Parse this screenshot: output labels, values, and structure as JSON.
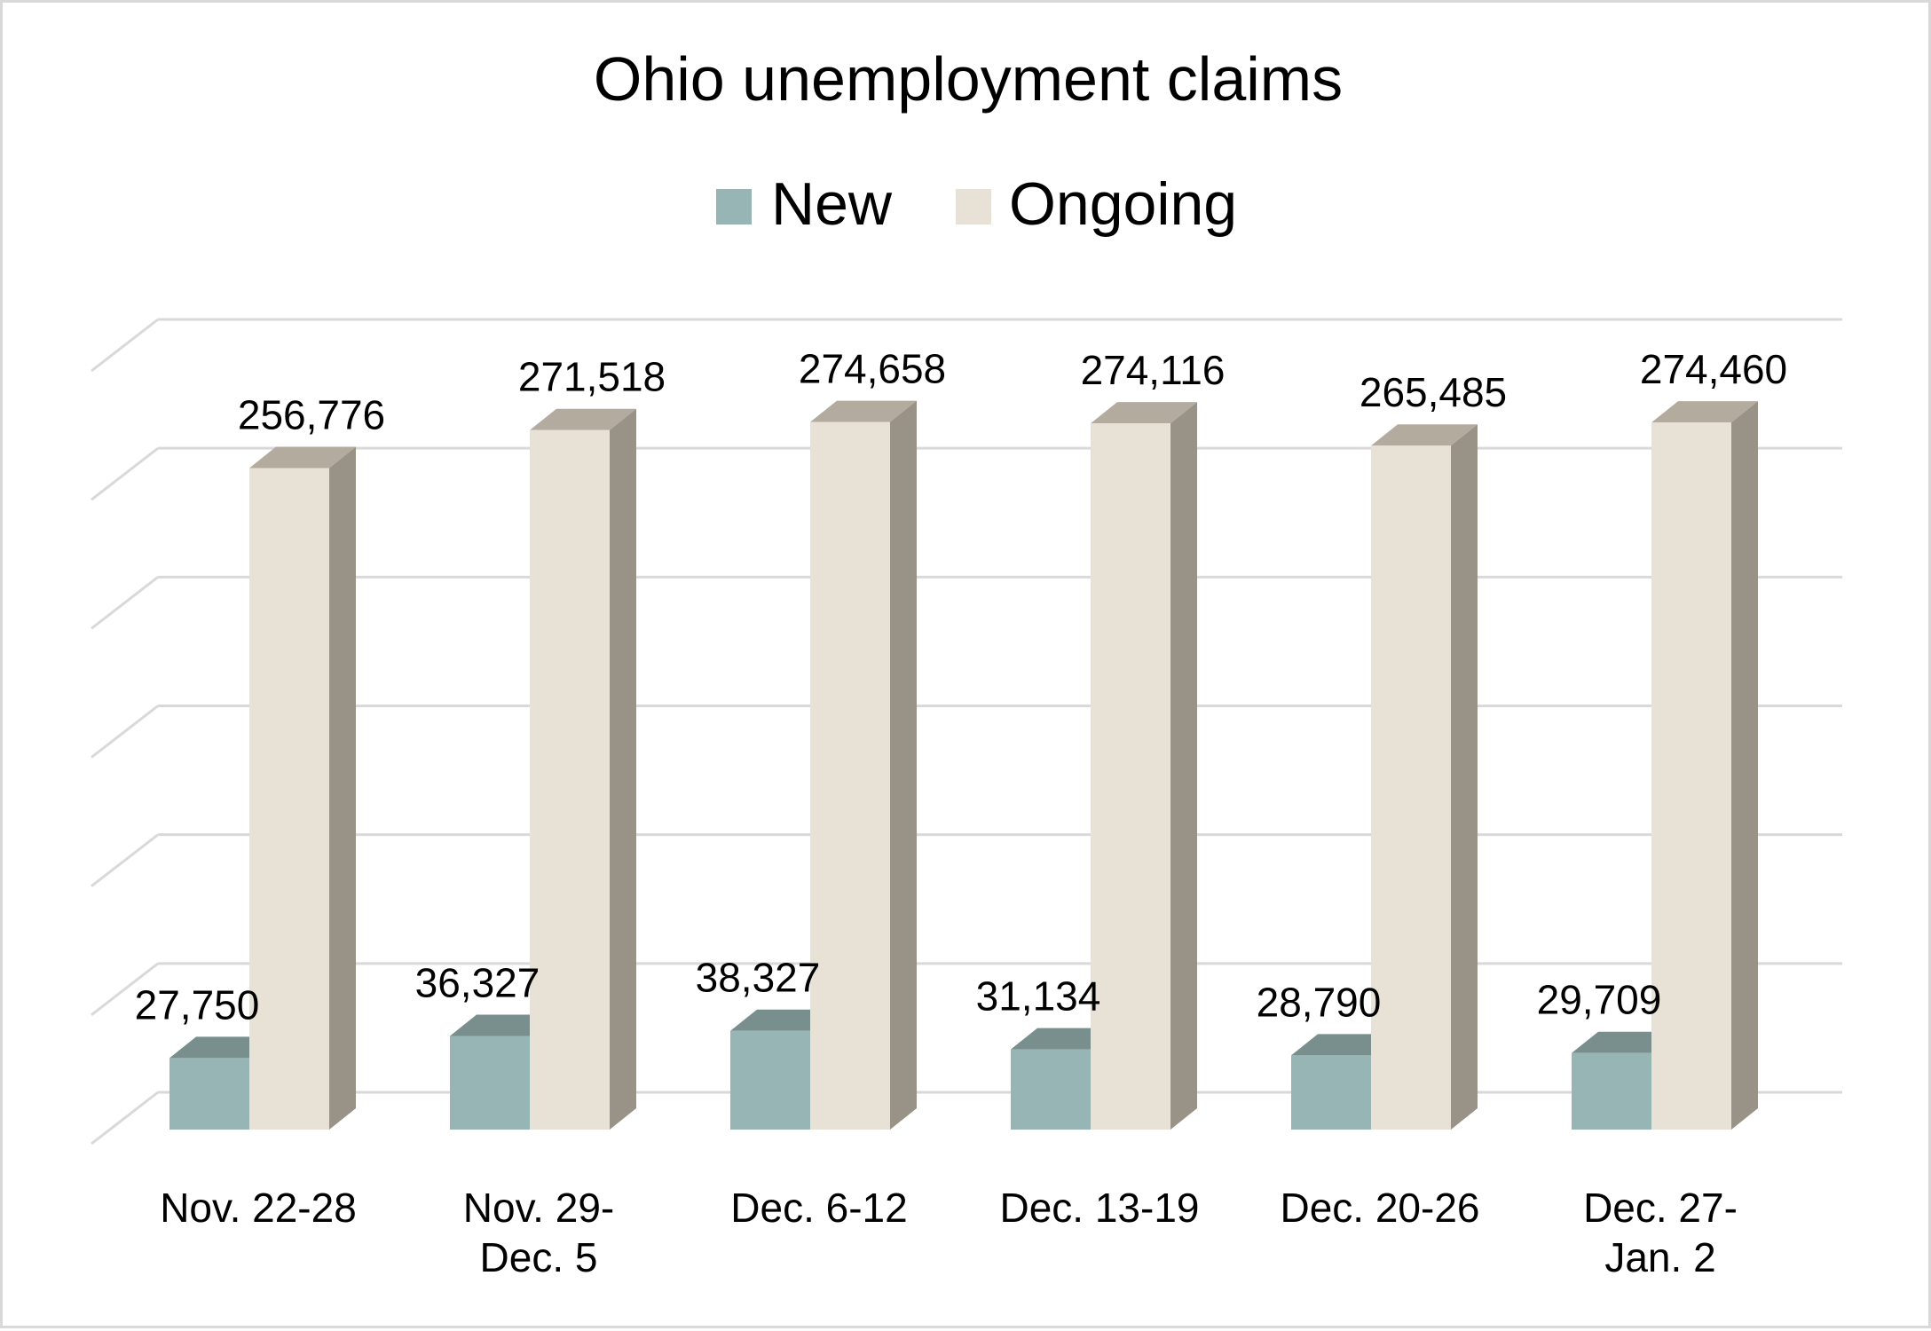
{
  "chart_data": {
    "type": "bar",
    "style": "3d-clustered",
    "title": "Ohio unemployment claims",
    "categories": [
      [
        "Nov. 22-28"
      ],
      [
        "Nov. 29-",
        "Dec. 5"
      ],
      [
        "Dec. 6-12"
      ],
      [
        "Dec. 13-19"
      ],
      [
        "Dec. 20-26"
      ],
      [
        "Dec. 27-",
        "Jan. 2"
      ]
    ],
    "series": [
      {
        "name": "New",
        "values": [
          27750,
          36327,
          38327,
          31134,
          28790,
          29709
        ],
        "labels": [
          "27,750",
          "36,327",
          "38,327",
          "31,134",
          "28,790",
          "29,709"
        ],
        "color": "#97b5b4",
        "top_color": "#788f8e"
      },
      {
        "name": "Ongoing",
        "values": [
          256776,
          271518,
          274658,
          274116,
          265485,
          274460
        ],
        "labels": [
          "256,776",
          "271,518",
          "274,658",
          "274,116",
          "265,485",
          "274,460"
        ],
        "color": "#e8e1d5",
        "top_color": "#b4ab9f",
        "side_color": "#999287"
      }
    ],
    "legend_position": "top",
    "ylim": [
      0,
      300000
    ],
    "y_gridlines": [
      0,
      50000,
      100000,
      150000,
      200000,
      250000,
      300000
    ],
    "y_tick_labels_shown": false,
    "grid": true,
    "colors": {
      "grid": "#d9d9d9",
      "frame": "#d9d9d9"
    }
  }
}
